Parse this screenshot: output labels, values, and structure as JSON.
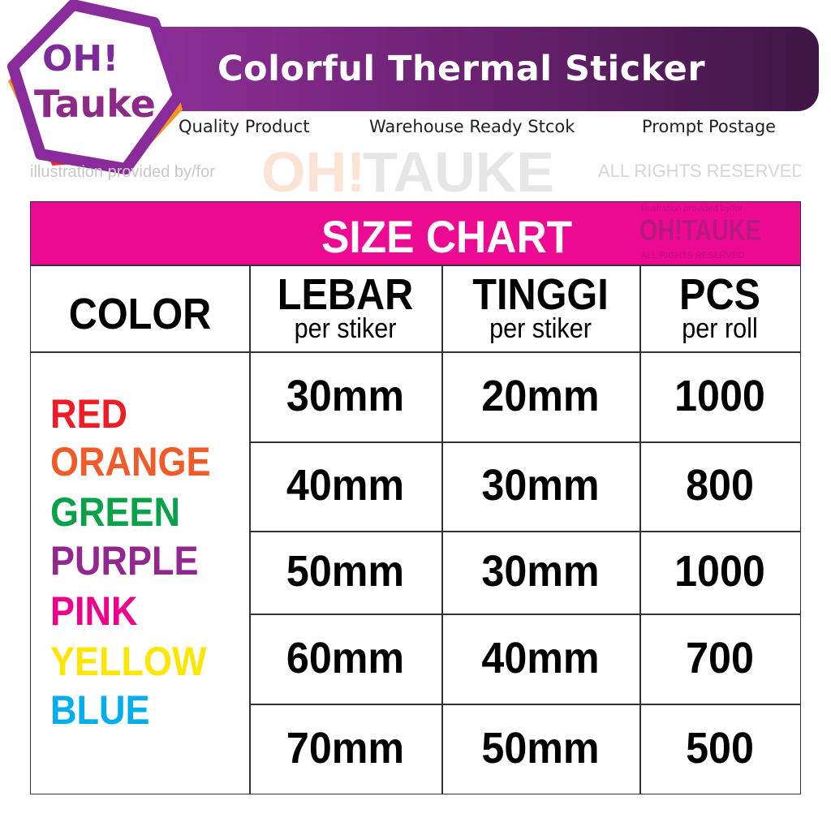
{
  "logo": {
    "line1": "OH!",
    "line2": "Tauke",
    "hexagon_color": "#8a2b9c"
  },
  "banner": {
    "title": "Colorful Thermal Sticker",
    "taglines": [
      "Quality Product",
      "Warehouse Ready Stcok",
      "Prompt Postage"
    ]
  },
  "table": {
    "title": "SIZE CHART",
    "headers": [
      {
        "main": "COLOR",
        "sub": ""
      },
      {
        "main": "LEBAR",
        "sub": "per stiker"
      },
      {
        "main": "TINGGI",
        "sub": "per stiker"
      },
      {
        "main": "PCS",
        "sub": "per roll"
      }
    ],
    "colors": [
      {
        "name": "RED",
        "hex": "#ee1c25"
      },
      {
        "name": "ORANGE",
        "hex": "#f15a29"
      },
      {
        "name": "GREEN",
        "hex": "#0aa14b"
      },
      {
        "name": "PURPLE",
        "hex": "#92278f"
      },
      {
        "name": "PINK",
        "hex": "#ec008c"
      },
      {
        "name": "YELLOW",
        "hex": "#ffe600"
      },
      {
        "name": "BLUE",
        "hex": "#00aeef"
      }
    ],
    "rows": [
      {
        "lebar": "30mm",
        "tinggi": "20mm",
        "pcs": "1000"
      },
      {
        "lebar": "40mm",
        "tinggi": "30mm",
        "pcs": "800"
      },
      {
        "lebar": "50mm",
        "tinggi": "30mm",
        "pcs": "1000"
      },
      {
        "lebar": "60mm",
        "tinggi": "40mm",
        "pcs": "700"
      },
      {
        "lebar": "70mm",
        "tinggi": "50mm",
        "pcs": "500"
      }
    ],
    "accent": "#ec0a93"
  },
  "watermark": {
    "top": "illustration provided by/for",
    "brand_a": "OH!",
    "brand_b": "TAUKE",
    "bottom": "ALL RIGHTS RESERVED"
  }
}
